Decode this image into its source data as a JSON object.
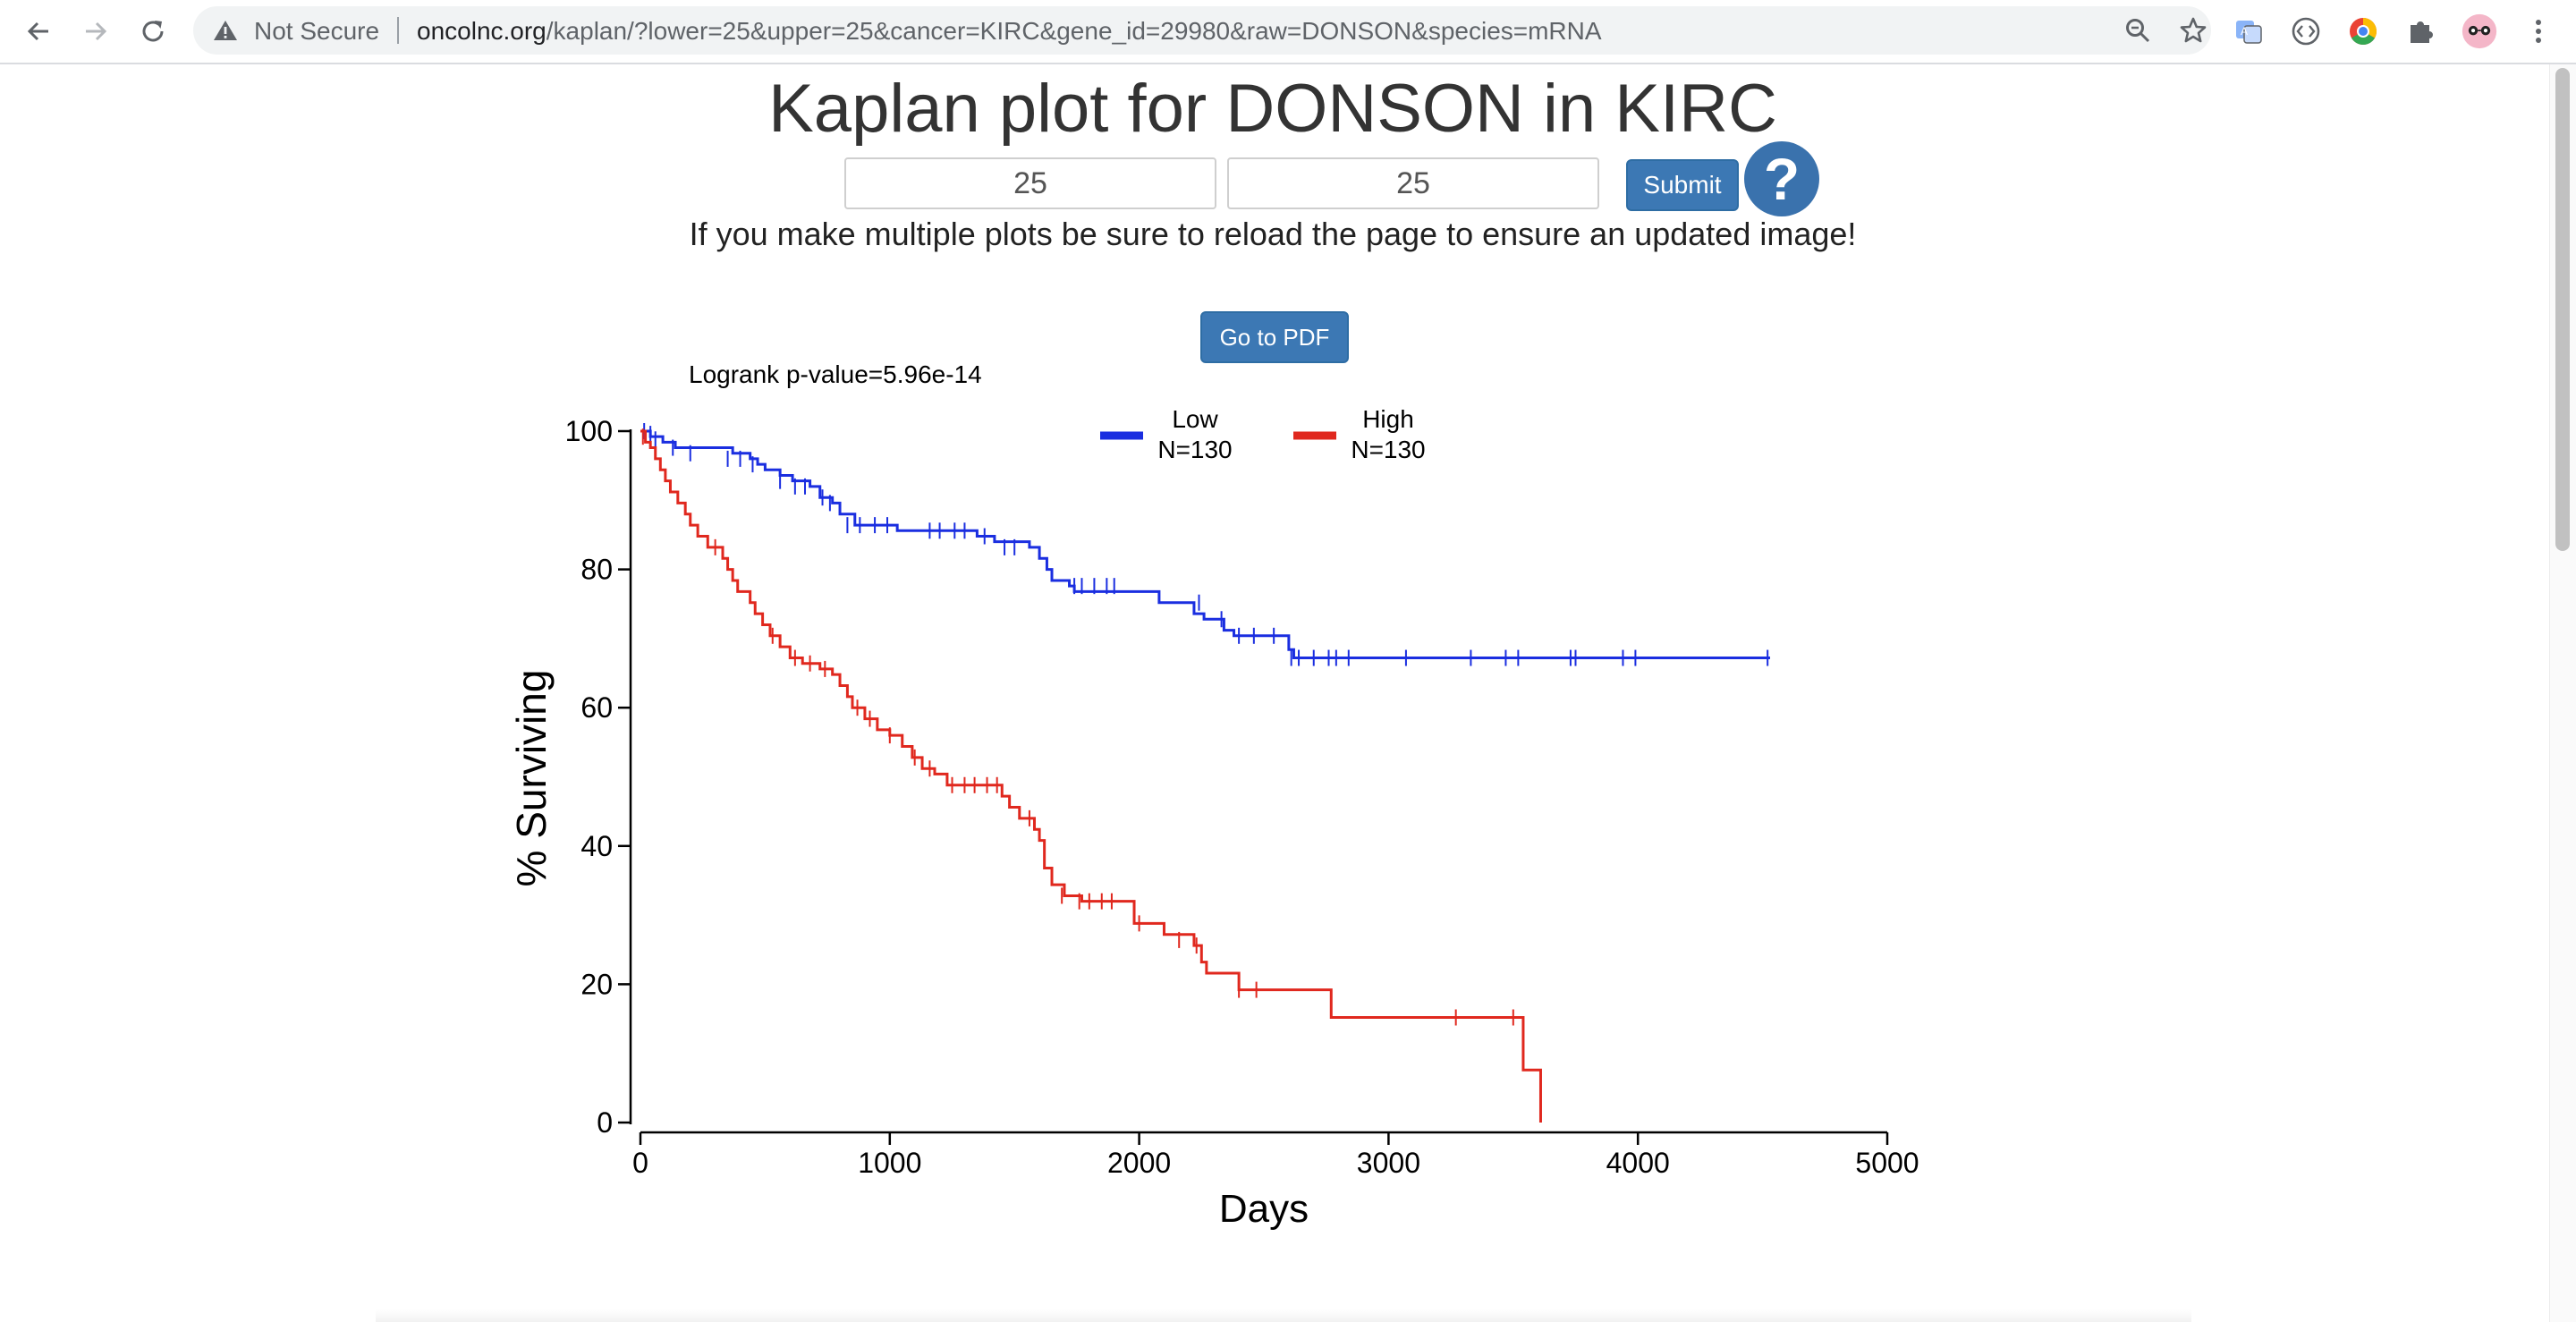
{
  "browser": {
    "security_status": "Not Secure",
    "url_host": "oncolnc.org",
    "url_path": "/kaplan/?lower=25&upper=25&cancer=KIRC&gene_id=29980&raw=DONSON&species=mRNA",
    "icons": [
      "back-arrow-icon",
      "forward-arrow-icon",
      "reload-icon",
      "warning-icon",
      "zoom-icon",
      "star-icon",
      "translate-extension-icon",
      "code-extension-icon",
      "chrome-color-extension-icon",
      "puzzle-extension-icon",
      "profile-avatar-icon",
      "kebab-menu-icon"
    ]
  },
  "page": {
    "title": "Kaplan plot for DONSON in KIRC",
    "lower_value": "25",
    "upper_value": "25",
    "submit_label": "Submit",
    "help_label": "?",
    "reload_note": "If you make multiple plots be sure to reload the page to ensure an updated image!",
    "pdf_label": "Go to PDF"
  },
  "chart_data": {
    "type": "line",
    "annotation": "Logrank p-value=5.96e-14",
    "xlabel": "Days",
    "ylabel": "% Surviving",
    "xlim": [
      0,
      5000
    ],
    "ylim": [
      0,
      100
    ],
    "x_ticks": [
      0,
      1000,
      2000,
      3000,
      4000,
      5000
    ],
    "y_ticks": [
      0,
      20,
      40,
      60,
      80,
      100
    ],
    "grid": false,
    "legend_position": "top-center",
    "series": [
      {
        "name": "Low",
        "legend_sub": "N=130",
        "color": "#1a2ee0",
        "steps": [
          [
            0,
            100
          ],
          [
            40,
            99.2
          ],
          [
            90,
            98.4
          ],
          [
            140,
            97.6
          ],
          [
            370,
            96.8
          ],
          [
            440,
            96
          ],
          [
            470,
            95.2
          ],
          [
            500,
            94.4
          ],
          [
            560,
            93.6
          ],
          [
            610,
            92.8
          ],
          [
            680,
            92
          ],
          [
            720,
            90.4
          ],
          [
            770,
            89.6
          ],
          [
            800,
            88
          ],
          [
            860,
            86.4
          ],
          [
            1030,
            85.6
          ],
          [
            1350,
            84.8
          ],
          [
            1420,
            84
          ],
          [
            1560,
            83.2
          ],
          [
            1600,
            81.6
          ],
          [
            1630,
            80
          ],
          [
            1650,
            78.4
          ],
          [
            1720,
            77.6
          ],
          [
            1740,
            76.8
          ],
          [
            2080,
            75.2
          ],
          [
            2220,
            73.6
          ],
          [
            2260,
            72.8
          ],
          [
            2340,
            71.2
          ],
          [
            2380,
            70.4
          ],
          [
            2600,
            68.4
          ],
          [
            2620,
            67.2
          ],
          [
            4530,
            67.2
          ]
        ],
        "censors": [
          [
            15,
            100
          ],
          [
            40,
            99.6
          ],
          [
            60,
            98.8
          ],
          [
            130,
            97.6
          ],
          [
            200,
            96.8
          ],
          [
            350,
            96
          ],
          [
            400,
            96
          ],
          [
            450,
            95.2
          ],
          [
            560,
            92.8
          ],
          [
            620,
            92
          ],
          [
            660,
            92
          ],
          [
            730,
            90.4
          ],
          [
            760,
            89.6
          ],
          [
            830,
            86.4
          ],
          [
            880,
            86.4
          ],
          [
            940,
            86.4
          ],
          [
            990,
            86.4
          ],
          [
            1160,
            85.6
          ],
          [
            1200,
            85.6
          ],
          [
            1260,
            85.6
          ],
          [
            1300,
            85.6
          ],
          [
            1380,
            84.8
          ],
          [
            1460,
            83.2
          ],
          [
            1500,
            83.2
          ],
          [
            1740,
            77.6
          ],
          [
            1770,
            77.6
          ],
          [
            1820,
            77.6
          ],
          [
            1870,
            77.6
          ],
          [
            1900,
            77.6
          ],
          [
            2240,
            75.2
          ],
          [
            2330,
            72.8
          ],
          [
            2400,
            70.4
          ],
          [
            2460,
            70.4
          ],
          [
            2540,
            70.4
          ],
          [
            2610,
            67.2
          ],
          [
            2640,
            67.2
          ],
          [
            2700,
            67.2
          ],
          [
            2760,
            67.2
          ],
          [
            2790,
            67.2
          ],
          [
            2840,
            67.2
          ],
          [
            3070,
            67.2
          ],
          [
            3330,
            67.2
          ],
          [
            3470,
            67.2
          ],
          [
            3520,
            67.2
          ],
          [
            3730,
            67.2
          ],
          [
            3750,
            67.2
          ],
          [
            3940,
            67.2
          ],
          [
            3990,
            67.2
          ],
          [
            4520,
            67.2
          ]
        ]
      },
      {
        "name": "High",
        "legend_sub": "N=130",
        "color": "#e0281e",
        "steps": [
          [
            0,
            100
          ],
          [
            20,
            98.4
          ],
          [
            40,
            97.6
          ],
          [
            60,
            96
          ],
          [
            80,
            94.4
          ],
          [
            100,
            92.8
          ],
          [
            120,
            91.2
          ],
          [
            150,
            89.6
          ],
          [
            180,
            88
          ],
          [
            200,
            86.4
          ],
          [
            230,
            84.8
          ],
          [
            270,
            83.2
          ],
          [
            330,
            81.6
          ],
          [
            350,
            80
          ],
          [
            370,
            78.4
          ],
          [
            390,
            76.8
          ],
          [
            440,
            75.2
          ],
          [
            460,
            73.6
          ],
          [
            490,
            72
          ],
          [
            520,
            70.4
          ],
          [
            560,
            68.8
          ],
          [
            600,
            67.2
          ],
          [
            650,
            66.4
          ],
          [
            720,
            65.6
          ],
          [
            770,
            64.8
          ],
          [
            800,
            63.2
          ],
          [
            830,
            61.6
          ],
          [
            850,
            60
          ],
          [
            900,
            58.4
          ],
          [
            950,
            56.8
          ],
          [
            1000,
            56
          ],
          [
            1050,
            54.4
          ],
          [
            1090,
            52.8
          ],
          [
            1130,
            51.2
          ],
          [
            1180,
            50.4
          ],
          [
            1230,
            48.8
          ],
          [
            1450,
            47.2
          ],
          [
            1480,
            45.6
          ],
          [
            1520,
            44
          ],
          [
            1580,
            42.4
          ],
          [
            1600,
            40.8
          ],
          [
            1620,
            36.8
          ],
          [
            1650,
            34.4
          ],
          [
            1700,
            32.8
          ],
          [
            1770,
            32
          ],
          [
            1980,
            28.8
          ],
          [
            2100,
            27.2
          ],
          [
            2220,
            25.6
          ],
          [
            2250,
            23.2
          ],
          [
            2270,
            21.6
          ],
          [
            2400,
            19.2
          ],
          [
            2770,
            15.2
          ],
          [
            3540,
            7.6
          ],
          [
            3610,
            0
          ]
        ],
        "censors": [
          [
            10,
            99.2
          ],
          [
            300,
            83.2
          ],
          [
            530,
            70.4
          ],
          [
            620,
            67.2
          ],
          [
            680,
            66.4
          ],
          [
            740,
            65.6
          ],
          [
            870,
            60
          ],
          [
            920,
            58.4
          ],
          [
            1000,
            56
          ],
          [
            1100,
            52.8
          ],
          [
            1160,
            51.2
          ],
          [
            1250,
            48.8
          ],
          [
            1300,
            48.8
          ],
          [
            1340,
            48.8
          ],
          [
            1390,
            48.8
          ],
          [
            1430,
            48.8
          ],
          [
            1560,
            44
          ],
          [
            1690,
            32.8
          ],
          [
            1760,
            32
          ],
          [
            1800,
            32
          ],
          [
            1850,
            32
          ],
          [
            1890,
            32
          ],
          [
            2000,
            28.8
          ],
          [
            2160,
            26.4
          ],
          [
            2230,
            25.6
          ],
          [
            2400,
            19.2
          ],
          [
            2470,
            19.2
          ],
          [
            3270,
            15.2
          ],
          [
            3500,
            15.2
          ]
        ]
      }
    ]
  }
}
